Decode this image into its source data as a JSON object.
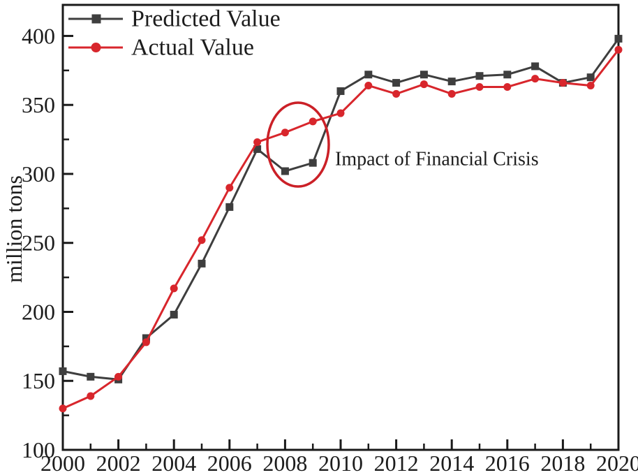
{
  "chart_data": {
    "type": "line",
    "title": "",
    "xlabel": "",
    "ylabel": "million tons",
    "xlim": [
      2000,
      2020
    ],
    "ylim": [
      100,
      422.5
    ],
    "grid": false,
    "legend_position": "top-left",
    "axis_color": "#1a1a1a",
    "x": [
      2000,
      2001,
      2002,
      2003,
      2004,
      2005,
      2006,
      2007,
      2008,
      2009,
      2010,
      2011,
      2012,
      2013,
      2014,
      2015,
      2016,
      2017,
      2018,
      2019,
      2020
    ],
    "x_ticks_major": [
      2000,
      2002,
      2004,
      2006,
      2008,
      2010,
      2012,
      2014,
      2016,
      2018,
      2020
    ],
    "x_ticks_minor": [
      2001,
      2003,
      2005,
      2007,
      2009,
      2011,
      2013,
      2015,
      2017,
      2019
    ],
    "y_ticks_major": [
      100,
      150,
      200,
      250,
      300,
      350,
      400
    ],
    "y_ticks_minor": [
      125,
      175,
      225,
      275,
      325,
      375
    ],
    "series": [
      {
        "name": "Predicted Value",
        "color": "#3e3e3e",
        "marker": "square",
        "values": [
          157,
          153,
          151,
          181,
          198,
          235,
          276,
          318,
          302,
          308,
          360,
          372,
          366,
          372,
          367,
          371,
          372,
          378,
          366,
          370,
          398
        ]
      },
      {
        "name": "Actual Value",
        "color": "#d8262c",
        "marker": "circle",
        "values": [
          130,
          139,
          153,
          178,
          217,
          252,
          290,
          323,
          330,
          338,
          344,
          364,
          358,
          365,
          358,
          363,
          363,
          369,
          366,
          364,
          390
        ]
      }
    ],
    "annotation": {
      "text": "Impact of Financial Crisis",
      "ellipse_color": "#cb2027",
      "ellipse_center_year": 2008.5,
      "ellipse_center_value": 321,
      "ellipse_rx_years": 1.1,
      "ellipse_ry_units": 30
    }
  }
}
